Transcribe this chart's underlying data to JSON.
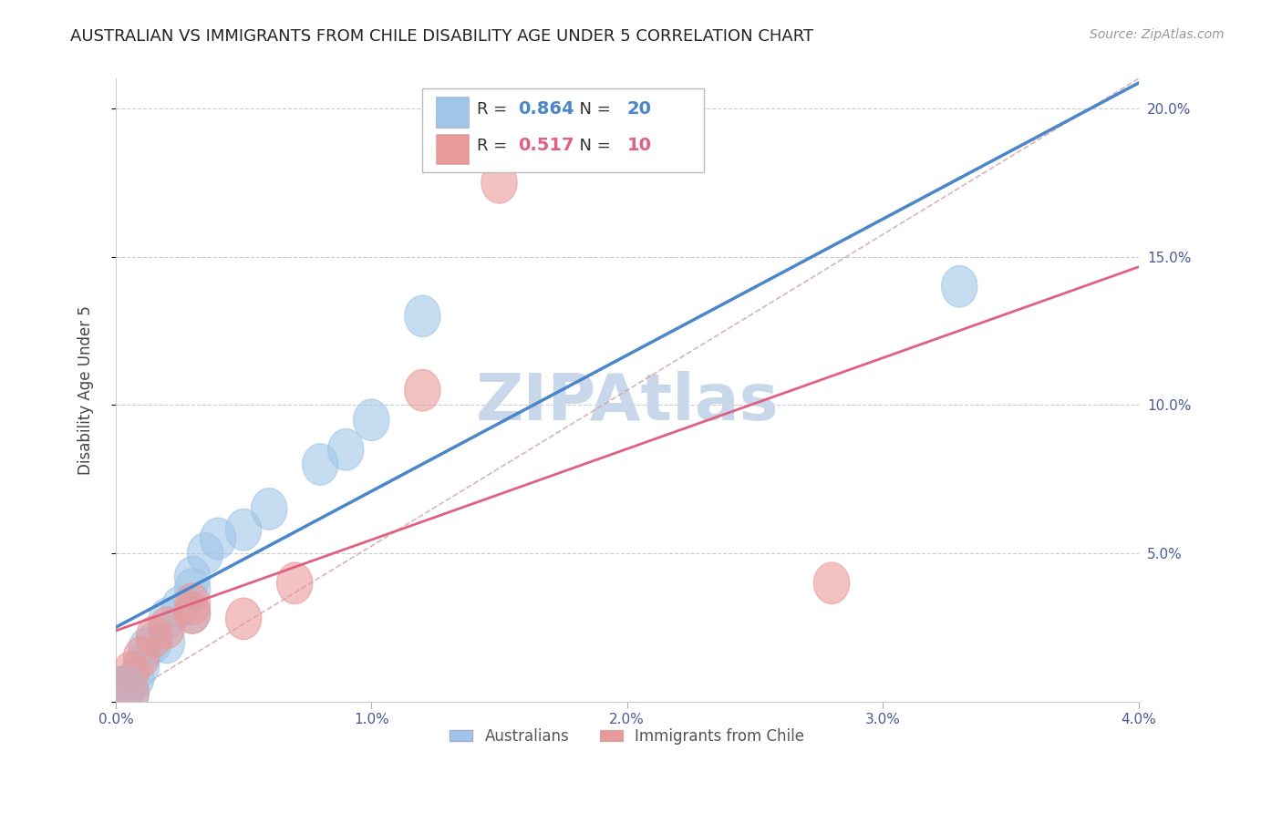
{
  "title": "AUSTRALIAN VS IMMIGRANTS FROM CHILE DISABILITY AGE UNDER 5 CORRELATION CHART",
  "source": "Source: ZipAtlas.com",
  "ylabel": "Disability Age Under 5",
  "r_australian": 0.864,
  "n_australian": 20,
  "r_chile": 0.517,
  "n_chile": 10,
  "xlim": [
    0.0,
    0.04
  ],
  "ylim": [
    0.0,
    0.21
  ],
  "x_ticks": [
    0.0,
    0.01,
    0.02,
    0.03,
    0.04
  ],
  "x_tick_labels": [
    "0.0%",
    "1.0%",
    "2.0%",
    "3.0%",
    "4.0%"
  ],
  "y_ticks": [
    0.0,
    0.05,
    0.1,
    0.15,
    0.2
  ],
  "y_tick_labels": [
    "",
    "5.0%",
    "10.0%",
    "15.0%",
    "20.0%"
  ],
  "color_australian": "#9fc5e8",
  "color_chile": "#ea9999",
  "color_trend_australian": "#4a86c8",
  "color_trend_chile": "#e06080",
  "color_diagonal": "#d0a0a8",
  "watermark": "ZIPAtlas",
  "watermark_color": "#c8d8ea",
  "legend_label_australian": "Australians",
  "legend_label_chile": "Immigrants from Chile",
  "australian_x": [
    0.0005,
    0.0008,
    0.001,
    0.0012,
    0.0015,
    0.002,
    0.002,
    0.0025,
    0.003,
    0.003,
    0.003,
    0.0035,
    0.004,
    0.005,
    0.006,
    0.008,
    0.009,
    0.01,
    0.012,
    0.033
  ],
  "australian_y": [
    0.005,
    0.008,
    0.012,
    0.018,
    0.02,
    0.02,
    0.028,
    0.032,
    0.03,
    0.038,
    0.042,
    0.05,
    0.055,
    0.058,
    0.065,
    0.08,
    0.085,
    0.095,
    0.13,
    0.14
  ],
  "chile_x": [
    0.0004,
    0.0006,
    0.001,
    0.0015,
    0.002,
    0.003,
    0.003,
    0.005,
    0.007,
    0.028
  ],
  "chile_y": [
    0.005,
    0.01,
    0.015,
    0.022,
    0.025,
    0.03,
    0.033,
    0.028,
    0.04,
    0.04
  ],
  "chile_outlier_x": [
    0.015
  ],
  "chile_outlier_y": [
    0.175
  ],
  "chile_outlier2_x": [
    0.012
  ],
  "chile_outlier2_y": [
    0.105
  ],
  "chile_outlier3_x": [
    0.028
  ],
  "chile_outlier3_y": [
    0.04
  ]
}
